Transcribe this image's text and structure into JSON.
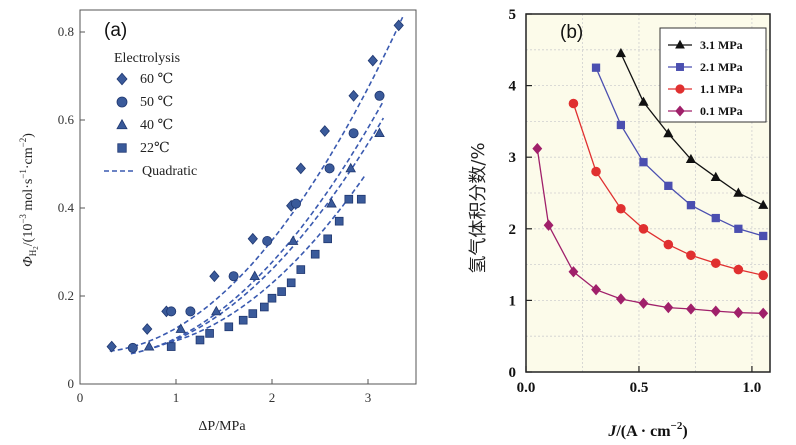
{
  "chart_data": [
    {
      "type": "scatter",
      "panel_label": "(a)",
      "xlabel": "ΔP/MPa",
      "ylabel": "Φ_H2/(10^-3 mol·s^-1·cm^-2)",
      "ylabel_main": "Φ",
      "ylabel_sub": "H",
      "ylabel_subsub": "2",
      "ylabel_rest": "/(10",
      "ylabel_exp1": "−3",
      "ylabel_mid": " mol·s",
      "ylabel_exp2": "−1",
      "ylabel_mid2": "·cm",
      "ylabel_exp3": "−2",
      "ylabel_end": ")",
      "xlim": [
        0,
        3.5
      ],
      "ylim": [
        0,
        0.85
      ],
      "xticks": [
        "0",
        "1",
        "2",
        "3"
      ],
      "yticks": [
        "0",
        "0.2",
        "0.4",
        "0.6",
        "0.8"
      ],
      "legend_title": "Electrolysis",
      "fit_label": "Quadratic",
      "color": "#3a5a9a",
      "fit_color": "#3a5ab0",
      "series": [
        {
          "name": "60 ℃",
          "marker": "diamond",
          "x": [
            0.33,
            0.7,
            0.9,
            1.4,
            1.8,
            2.2,
            2.3,
            2.55,
            2.85,
            3.05,
            3.32
          ],
          "y": [
            0.085,
            0.125,
            0.165,
            0.245,
            0.33,
            0.405,
            0.49,
            0.575,
            0.655,
            0.735,
            0.815
          ],
          "fit": [
            0.0734,
            -0.0206,
            0.0741
          ]
        },
        {
          "name": "50 ℃",
          "marker": "circle",
          "x": [
            0.55,
            0.95,
            1.15,
            1.6,
            1.95,
            2.25,
            2.6,
            2.85,
            3.12
          ],
          "y": [
            0.082,
            0.165,
            0.165,
            0.245,
            0.325,
            0.41,
            0.49,
            0.57,
            0.655
          ],
          "fit": [
            0.0664,
            -0.0267,
            0.0644
          ]
        },
        {
          "name": "40 ℃",
          "marker": "triangle",
          "x": [
            0.72,
            1.05,
            1.42,
            1.82,
            2.22,
            2.62,
            2.82,
            3.12
          ],
          "y": [
            0.085,
            0.125,
            0.165,
            0.245,
            0.325,
            0.41,
            0.49,
            0.57
          ],
          "fit": [
            0.0633,
            -0.0304,
            0.0683
          ]
        },
        {
          "name": "22℃",
          "marker": "square",
          "x": [
            0.95,
            1.25,
            1.35,
            1.55,
            1.7,
            1.8,
            1.92,
            2.0,
            2.1,
            2.2,
            2.3,
            2.45,
            2.58,
            2.7,
            2.8,
            2.93
          ],
          "y": [
            0.085,
            0.1,
            0.115,
            0.13,
            0.145,
            0.16,
            0.175,
            0.195,
            0.21,
            0.23,
            0.26,
            0.295,
            0.33,
            0.37,
            0.42,
            0.42
          ],
          "fit": [
            0.0619,
            -0.0549,
            0.0914
          ]
        }
      ]
    },
    {
      "type": "line",
      "panel_label": "(b)",
      "xlabel_main": "J",
      "xlabel_rest": "/(A · cm",
      "xlabel_exp": "−2",
      "xlabel_end": ")",
      "ylabel": "氢气体积分数/%",
      "xlim": [
        0,
        1.08
      ],
      "ylim": [
        0,
        5
      ],
      "xticks": [
        "0.0",
        "0.5",
        "1.0"
      ],
      "yticks": [
        "0",
        "1",
        "2",
        "3",
        "4",
        "5"
      ],
      "legend_placement": "top-right",
      "series": [
        {
          "name": "3.1 MPa",
          "marker": "triangle",
          "color": "#111111",
          "x": [
            0.42,
            0.52,
            0.63,
            0.73,
            0.84,
            0.94,
            1.05
          ],
          "y": [
            4.45,
            3.77,
            3.33,
            2.97,
            2.72,
            2.5,
            2.33
          ]
        },
        {
          "name": "2.1 MPa",
          "marker": "square",
          "color": "#4b4fb0",
          "x": [
            0.31,
            0.42,
            0.52,
            0.63,
            0.73,
            0.84,
            0.94,
            1.05
          ],
          "y": [
            4.25,
            3.45,
            2.93,
            2.6,
            2.33,
            2.15,
            2.0,
            1.9
          ]
        },
        {
          "name": "1.1 MPa",
          "marker": "circle",
          "color": "#e03030",
          "x": [
            0.21,
            0.31,
            0.42,
            0.52,
            0.63,
            0.73,
            0.84,
            0.94,
            1.05
          ],
          "y": [
            3.75,
            2.8,
            2.28,
            2.0,
            1.78,
            1.63,
            1.52,
            1.43,
            1.35
          ]
        },
        {
          "name": "0.1 MPa",
          "marker": "diamond",
          "color": "#a0206a",
          "x": [
            0.05,
            0.1,
            0.21,
            0.31,
            0.42,
            0.52,
            0.63,
            0.73,
            0.84,
            0.94,
            1.05
          ],
          "y": [
            3.12,
            2.05,
            1.4,
            1.15,
            1.02,
            0.96,
            0.9,
            0.88,
            0.85,
            0.83,
            0.82
          ]
        }
      ]
    }
  ]
}
